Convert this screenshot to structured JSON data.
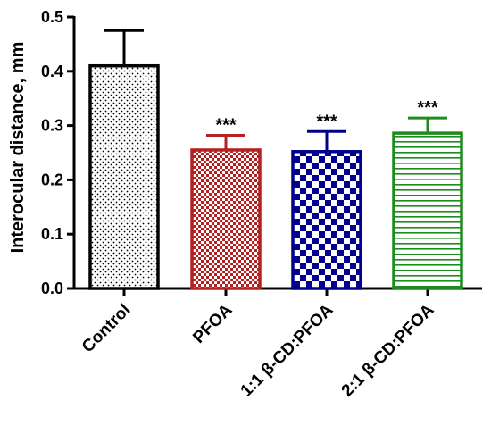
{
  "chart_data": {
    "type": "bar",
    "categories": [
      "Control",
      "PFOA",
      "1:1 β-CD:PFOA",
      "2:1 β-CD:PFOA"
    ],
    "values": [
      0.41,
      0.255,
      0.252,
      0.286
    ],
    "errors": [
      0.065,
      0.027,
      0.037,
      0.028
    ],
    "annotations": [
      "",
      "***",
      "***",
      "***"
    ],
    "ylabel": "Interocular distance, mm",
    "xlabel": "",
    "ylim": [
      0,
      0.5
    ],
    "yticks": [
      "0.0",
      "0.1",
      "0.2",
      "0.3",
      "0.4",
      "0.5"
    ],
    "grid": false,
    "legend": "none",
    "colors": [
      "#000000",
      "#b22222",
      "#00008b",
      "#1e8b1e"
    ],
    "patterns": [
      "dots",
      "checker-small",
      "checker-large",
      "horizontal-lines"
    ]
  }
}
